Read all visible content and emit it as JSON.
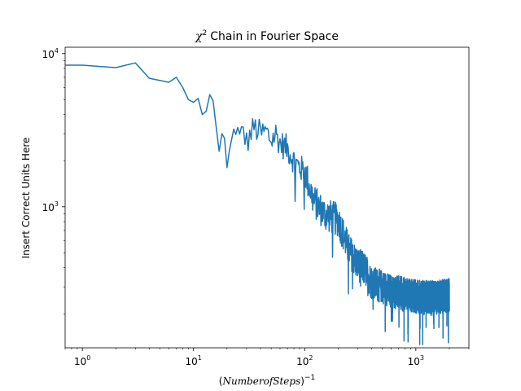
{
  "chart_data": {
    "type": "line",
    "title": "Chain in Fourier Space",
    "title_symbol": "χ",
    "title_superscript": "2",
    "xlabel": "NumberofSteps",
    "xlabel_exponent": "−1",
    "ylabel": "Insert Correct Units Here",
    "xscale": "log",
    "yscale": "log",
    "xlim": [
      0.7,
      3000
    ],
    "ylim": [
      120,
      11000
    ],
    "grid": false,
    "line_color": "#1f77b4",
    "x_ticks": [
      {
        "base": "10",
        "exp": "0",
        "value": 1
      },
      {
        "base": "10",
        "exp": "1",
        "value": 10
      },
      {
        "base": "10",
        "exp": "2",
        "value": 100
      },
      {
        "base": "10",
        "exp": "3",
        "value": 1000
      }
    ],
    "y_ticks": [
      {
        "base": "10",
        "exp": "3",
        "value": 1000
      },
      {
        "base": "10",
        "exp": "4",
        "value": 10000
      }
    ],
    "series": [
      {
        "anchors": [
          [
            0.7,
            8400
          ],
          [
            1,
            8400
          ],
          [
            2,
            8100
          ],
          [
            3,
            8700
          ],
          [
            4,
            6900
          ],
          [
            6,
            6500
          ],
          [
            7,
            7000
          ],
          [
            8,
            6000
          ],
          [
            9,
            5000
          ],
          [
            10,
            4800
          ],
          [
            11,
            5100
          ],
          [
            12,
            4000
          ],
          [
            13,
            4200
          ],
          [
            14,
            5400
          ],
          [
            15,
            4900
          ],
          [
            16,
            3300
          ],
          [
            17,
            2300
          ],
          [
            18,
            3000
          ],
          [
            19,
            2800
          ],
          [
            20,
            1800
          ],
          [
            22,
            2600
          ],
          [
            24,
            3400
          ],
          [
            26,
            2700
          ],
          [
            28,
            3200
          ],
          [
            30,
            2600
          ],
          [
            35,
            3300
          ],
          [
            40,
            3000
          ],
          [
            45,
            3100
          ],
          [
            50,
            2700
          ],
          [
            55,
            3000
          ],
          [
            60,
            2600
          ],
          [
            70,
            2400
          ],
          [
            80,
            2000
          ],
          [
            90,
            1800
          ],
          [
            100,
            1700
          ],
          [
            120,
            1100
          ],
          [
            150,
            900
          ],
          [
            200,
            820
          ],
          [
            250,
            520
          ],
          [
            300,
            420
          ],
          [
            350,
            390
          ],
          [
            400,
            320
          ],
          [
            500,
            300
          ],
          [
            600,
            280
          ],
          [
            800,
            270
          ],
          [
            1000,
            260
          ],
          [
            1500,
            255
          ],
          [
            2000,
            265
          ]
        ]
      }
    ]
  }
}
